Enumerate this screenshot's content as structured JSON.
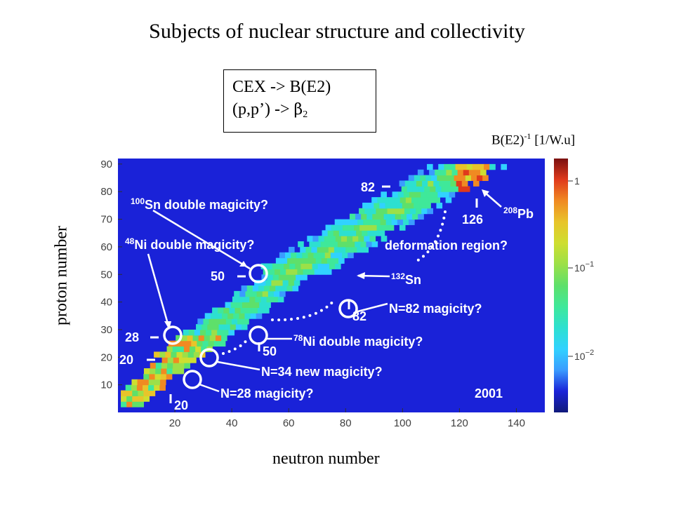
{
  "title": "Subjects of nuclear structure and collectivity",
  "legend_box": {
    "line1": "CEX  -> B(E2)",
    "line2_prefix": "(p,p’) -> ",
    "line2_symbol": "β",
    "line2_sub": "2"
  },
  "colorbar": {
    "title_prefix": "B(E2)",
    "title_sup": "-1",
    "title_suffix": " [1/W.u]",
    "tick_labels": [
      "1",
      "10",
      "10"
    ],
    "tick_exponents": [
      "",
      "−1",
      "−2"
    ]
  },
  "chart_data": {
    "type": "heatmap",
    "title": "",
    "xlabel": "neutron number",
    "ylabel": "proton number",
    "xlim": [
      0,
      150
    ],
    "ylim": [
      0,
      92
    ],
    "xticks": [
      20,
      40,
      60,
      80,
      100,
      120,
      140
    ],
    "yticks": [
      10,
      20,
      30,
      40,
      50,
      60,
      70,
      80,
      90
    ],
    "background_color": "#1a22d8",
    "colorscale": [
      "#3a9cff",
      "#31d2ff",
      "#2de0d0",
      "#3fe89a",
      "#5ee06a",
      "#9ce048",
      "#cede30",
      "#e8c42a",
      "#f08a22",
      "#e03a1c"
    ],
    "annotations": {
      "sn100": "Sn double magicity?",
      "sn100_mass": "100",
      "ni48": "Ni double magicity?",
      "ni48_mass": "48",
      "n82": "N=82 magicity?",
      "ni78": "Ni double magicity?",
      "ni78_mass": "78",
      "n34": "N=34 new magicity?",
      "n28": "N=28 magicity?",
      "deformation": "deformation region?",
      "sn132": "Sn",
      "sn132_mass": "132",
      "pb208": "Pb",
      "pb208_mass": "208",
      "year": "2001"
    },
    "magic_labels": {
      "z82": "82",
      "n126": "126",
      "z50": "50",
      "n82": "82",
      "z28": "28",
      "z20": "20",
      "n50": "50",
      "n20": "20"
    }
  }
}
